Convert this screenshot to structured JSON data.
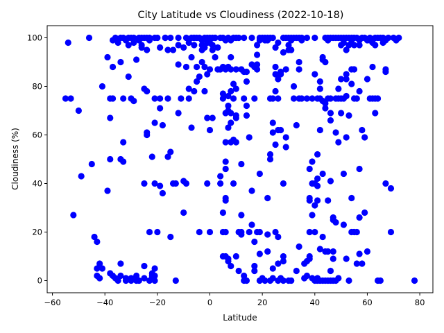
{
  "chart_data": {
    "type": "scatter",
    "title": "City Latitude vs Cloudiness (2022-10-18)",
    "xlabel": "Latitude",
    "ylabel": "Cloudiness (%)",
    "xlim": [
      -62,
      85
    ],
    "ylim": [
      -5,
      105
    ],
    "xticks": [
      -60,
      -40,
      -20,
      0,
      20,
      40,
      60,
      80
    ],
    "yticks": [
      0,
      20,
      40,
      60,
      80,
      100
    ],
    "grid": false,
    "marker_color": "#0000ff",
    "points": [
      [
        -55,
        75
      ],
      [
        -54,
        98
      ],
      [
        -53,
        75
      ],
      [
        -52,
        27
      ],
      [
        -50,
        70
      ],
      [
        -49,
        43
      ],
      [
        -46,
        100
      ],
      [
        -45,
        48
      ],
      [
        -44,
        18
      ],
      [
        -43,
        2
      ],
      [
        -43,
        5
      ],
      [
        -43,
        16
      ],
      [
        -42,
        7
      ],
      [
        -42,
        1
      ],
      [
        -41,
        5
      ],
      [
        -41,
        80
      ],
      [
        -39,
        92
      ],
      [
        -39,
        37
      ],
      [
        -38,
        67
      ],
      [
        -38,
        3
      ],
      [
        -38,
        50
      ],
      [
        -38,
        75
      ],
      [
        -37,
        99
      ],
      [
        -37,
        88
      ],
      [
        -37,
        75
      ],
      [
        -37,
        2
      ],
      [
        -36,
        100
      ],
      [
        -36,
        1
      ],
      [
        -35,
        98
      ],
      [
        -35,
        0
      ],
      [
        -34,
        100
      ],
      [
        -34,
        2
      ],
      [
        -34,
        7
      ],
      [
        -34,
        90
      ],
      [
        -34,
        50
      ],
      [
        -33,
        49
      ],
      [
        -33,
        100
      ],
      [
        -33,
        75
      ],
      [
        -33,
        57
      ],
      [
        -32,
        0
      ],
      [
        -32,
        99
      ],
      [
        -32,
        1
      ],
      [
        -31,
        100
      ],
      [
        -31,
        84
      ],
      [
        -31,
        97
      ],
      [
        -30,
        100
      ],
      [
        -30,
        0
      ],
      [
        -30,
        1
      ],
      [
        -30,
        75
      ],
      [
        -29,
        100
      ],
      [
        -29,
        98
      ],
      [
        -29,
        74
      ],
      [
        -28,
        91
      ],
      [
        -28,
        0
      ],
      [
        -28,
        2
      ],
      [
        -27,
        100
      ],
      [
        -27,
        99
      ],
      [
        -27,
        0
      ],
      [
        -26,
        100
      ],
      [
        -26,
        97
      ],
      [
        -26,
        96
      ],
      [
        -25,
        1
      ],
      [
        -25,
        100
      ],
      [
        -25,
        79
      ],
      [
        -25,
        40
      ],
      [
        -25,
        6
      ],
      [
        -24,
        100
      ],
      [
        -24,
        61
      ],
      [
        -24,
        78
      ],
      [
        -24,
        60
      ],
      [
        -24,
        95
      ],
      [
        -23,
        99
      ],
      [
        -23,
        100
      ],
      [
        -23,
        0
      ],
      [
        -23,
        20
      ],
      [
        -22,
        3
      ],
      [
        -22,
        2
      ],
      [
        -22,
        51
      ],
      [
        -22,
        1
      ],
      [
        -21,
        100
      ],
      [
        -21,
        75
      ],
      [
        -21,
        65
      ],
      [
        -21,
        40
      ],
      [
        -21,
        5
      ],
      [
        -21,
        0
      ],
      [
        -21,
        2
      ],
      [
        -20,
        20
      ],
      [
        -20,
        100
      ],
      [
        -19,
        96
      ],
      [
        -19,
        39
      ],
      [
        -19,
        71
      ],
      [
        -19,
        75
      ],
      [
        -18,
        64
      ],
      [
        -18,
        36
      ],
      [
        -17,
        100
      ],
      [
        -17,
        100
      ],
      [
        -16,
        75
      ],
      [
        -16,
        95
      ],
      [
        -16,
        51
      ],
      [
        -15,
        53
      ],
      [
        -15,
        18
      ],
      [
        -15,
        100
      ],
      [
        -14,
        40
      ],
      [
        -14,
        95
      ],
      [
        -13,
        0
      ],
      [
        -13,
        40
      ],
      [
        -12,
        100
      ],
      [
        -12,
        97
      ],
      [
        -12,
        89
      ],
      [
        -12,
        69
      ],
      [
        -11,
        75
      ],
      [
        -10,
        41
      ],
      [
        -10,
        28
      ],
      [
        -10,
        96
      ],
      [
        -9,
        100
      ],
      [
        -9,
        40
      ],
      [
        -9,
        88
      ],
      [
        -8,
        79
      ],
      [
        -8,
        98
      ],
      [
        -8,
        75
      ],
      [
        -7,
        100
      ],
      [
        -7,
        92
      ],
      [
        -7,
        63
      ],
      [
        -6,
        78
      ],
      [
        -6,
        100
      ],
      [
        -6,
        97
      ],
      [
        -6,
        100
      ],
      [
        -5,
        100
      ],
      [
        -5,
        82
      ],
      [
        -5,
        88
      ],
      [
        -4,
        100
      ],
      [
        -4,
        20
      ],
      [
        -4,
        84
      ],
      [
        -3,
        99
      ],
      [
        -3,
        90
      ],
      [
        -3,
        97
      ],
      [
        -3,
        95
      ],
      [
        -2,
        100
      ],
      [
        -2,
        96
      ],
      [
        -2,
        78
      ],
      [
        -2,
        88
      ],
      [
        -1,
        85
      ],
      [
        -1,
        40
      ],
      [
        -1,
        98
      ],
      [
        -1,
        100
      ],
      [
        -1,
        67
      ],
      [
        0,
        100
      ],
      [
        0,
        62
      ],
      [
        0,
        20
      ],
      [
        0,
        87
      ],
      [
        0,
        98
      ],
      [
        1,
        67
      ],
      [
        1,
        95
      ],
      [
        1,
        100
      ],
      [
        1,
        97
      ],
      [
        2,
        100
      ],
      [
        2,
        92
      ],
      [
        2,
        100
      ],
      [
        3,
        87
      ],
      [
        3,
        96
      ],
      [
        4,
        100
      ],
      [
        4,
        87
      ],
      [
        4,
        43
      ],
      [
        4,
        40
      ],
      [
        5,
        77
      ],
      [
        5,
        88
      ],
      [
        5,
        75
      ],
      [
        5,
        10
      ],
      [
        5,
        20
      ],
      [
        5,
        28
      ],
      [
        5,
        100
      ],
      [
        6,
        99
      ],
      [
        6,
        87
      ],
      [
        6,
        46
      ],
      [
        6,
        33
      ],
      [
        6,
        34
      ],
      [
        6,
        49
      ],
      [
        6,
        20
      ],
      [
        6,
        69
      ],
      [
        6,
        57
      ],
      [
        6,
        10
      ],
      [
        7,
        88
      ],
      [
        7,
        63
      ],
      [
        7,
        70
      ],
      [
        7,
        72
      ],
      [
        7,
        76
      ],
      [
        7,
        100
      ],
      [
        7,
        8
      ],
      [
        7,
        9
      ],
      [
        8,
        99
      ],
      [
        8,
        92
      ],
      [
        8,
        57
      ],
      [
        8,
        65
      ],
      [
        8,
        69
      ],
      [
        8,
        87
      ],
      [
        8,
        6
      ],
      [
        8,
        78
      ],
      [
        9,
        100
      ],
      [
        9,
        81
      ],
      [
        9,
        75
      ],
      [
        9,
        40
      ],
      [
        9,
        58
      ],
      [
        10,
        57
      ],
      [
        10,
        87
      ],
      [
        10,
        68
      ],
      [
        10,
        67
      ],
      [
        10,
        100
      ],
      [
        10,
        79
      ],
      [
        10,
        10
      ],
      [
        11,
        4
      ],
      [
        11,
        100
      ],
      [
        11,
        20
      ],
      [
        12,
        87
      ],
      [
        12,
        19
      ],
      [
        12,
        48
      ],
      [
        12,
        27
      ],
      [
        12,
        20
      ],
      [
        13,
        2
      ],
      [
        13,
        86
      ],
      [
        13,
        75
      ],
      [
        13,
        100
      ],
      [
        13,
        0
      ],
      [
        14,
        86
      ],
      [
        14,
        72
      ],
      [
        14,
        82
      ],
      [
        14,
        68
      ],
      [
        14,
        0
      ],
      [
        15,
        59
      ],
      [
        15,
        20
      ],
      [
        16,
        89
      ],
      [
        16,
        37
      ],
      [
        16,
        23
      ],
      [
        16,
        100
      ],
      [
        17,
        88
      ],
      [
        17,
        75
      ],
      [
        17,
        6
      ],
      [
        17,
        4
      ],
      [
        17,
        16
      ],
      [
        18,
        87
      ],
      [
        18,
        93
      ],
      [
        18,
        97
      ],
      [
        18,
        89
      ],
      [
        18,
        20
      ],
      [
        19,
        99
      ],
      [
        19,
        44
      ],
      [
        19,
        20
      ],
      [
        19,
        100
      ],
      [
        19,
        11
      ],
      [
        19,
        0
      ],
      [
        20,
        100
      ],
      [
        20,
        1
      ],
      [
        21,
        100
      ],
      [
        21,
        0
      ],
      [
        21,
        99
      ],
      [
        22,
        99
      ],
      [
        22,
        34
      ],
      [
        22,
        12
      ],
      [
        22,
        19
      ],
      [
        22,
        100
      ],
      [
        23,
        75
      ],
      [
        23,
        100
      ],
      [
        23,
        50
      ],
      [
        23,
        52
      ],
      [
        23,
        0
      ],
      [
        24,
        100
      ],
      [
        24,
        75
      ],
      [
        24,
        65
      ],
      [
        24,
        61
      ],
      [
        24,
        5
      ],
      [
        24,
        1
      ],
      [
        25,
        85
      ],
      [
        25,
        78
      ],
      [
        25,
        96
      ],
      [
        25,
        20
      ],
      [
        25,
        56
      ],
      [
        25,
        88
      ],
      [
        26,
        83
      ],
      [
        26,
        75
      ],
      [
        26,
        62
      ],
      [
        26,
        98
      ],
      [
        26,
        0
      ],
      [
        26,
        7
      ],
      [
        26,
        18
      ],
      [
        27,
        62
      ],
      [
        27,
        85
      ],
      [
        27,
        86
      ],
      [
        27,
        1
      ],
      [
        28,
        94
      ],
      [
        28,
        100
      ],
      [
        28,
        40
      ],
      [
        28,
        10
      ],
      [
        28,
        8
      ],
      [
        28,
        0
      ],
      [
        29,
        87
      ],
      [
        29,
        100
      ],
      [
        29,
        55
      ],
      [
        29,
        59
      ],
      [
        30,
        97
      ],
      [
        30,
        100
      ],
      [
        30,
        95
      ],
      [
        30,
        0
      ],
      [
        31,
        99
      ],
      [
        31,
        95
      ],
      [
        31,
        100
      ],
      [
        31,
        0
      ],
      [
        32,
        75
      ],
      [
        32,
        80
      ],
      [
        32,
        100
      ],
      [
        33,
        100
      ],
      [
        33,
        4
      ],
      [
        33,
        64
      ],
      [
        34,
        100
      ],
      [
        34,
        87
      ],
      [
        34,
        90
      ],
      [
        34,
        75
      ],
      [
        34,
        14
      ],
      [
        35,
        100
      ],
      [
        35,
        99
      ],
      [
        35,
        75
      ],
      [
        36,
        1
      ],
      [
        36,
        7
      ],
      [
        37,
        100
      ],
      [
        37,
        75
      ],
      [
        37,
        2
      ],
      [
        37,
        8
      ],
      [
        38,
        46
      ],
      [
        38,
        33
      ],
      [
        38,
        20
      ],
      [
        38,
        34
      ],
      [
        38,
        9
      ],
      [
        38,
        10
      ],
      [
        39,
        40
      ],
      [
        39,
        27
      ],
      [
        39,
        49
      ],
      [
        39,
        1
      ],
      [
        39,
        75
      ],
      [
        40,
        31
      ],
      [
        40,
        0
      ],
      [
        40,
        85
      ],
      [
        40,
        100
      ],
      [
        40,
        40
      ],
      [
        40,
        20
      ],
      [
        41,
        42
      ],
      [
        41,
        39
      ],
      [
        41,
        52
      ],
      [
        41,
        75
      ],
      [
        41,
        33
      ],
      [
        41,
        1
      ],
      [
        41,
        0
      ],
      [
        42,
        75
      ],
      [
        42,
        79
      ],
      [
        42,
        82
      ],
      [
        42,
        62
      ],
      [
        42,
        13
      ],
      [
        42,
        0
      ],
      [
        43,
        92
      ],
      [
        43,
        91
      ],
      [
        43,
        74
      ],
      [
        43,
        44
      ],
      [
        43,
        18
      ],
      [
        43,
        0
      ],
      [
        44,
        100
      ],
      [
        44,
        90
      ],
      [
        44,
        73
      ],
      [
        44,
        71
      ],
      [
        44,
        12
      ],
      [
        44,
        0
      ],
      [
        45,
        100
      ],
      [
        45,
        99
      ],
      [
        45,
        75
      ],
      [
        45,
        33
      ],
      [
        45,
        12
      ],
      [
        45,
        0
      ],
      [
        46,
        100
      ],
      [
        46,
        75
      ],
      [
        46,
        69
      ],
      [
        46,
        66
      ],
      [
        46,
        41
      ],
      [
        46,
        4
      ],
      [
        46,
        0
      ],
      [
        47,
        100
      ],
      [
        47,
        9
      ],
      [
        47,
        25
      ],
      [
        47,
        26
      ],
      [
        47,
        12
      ],
      [
        47,
        0
      ],
      [
        48,
        75
      ],
      [
        48,
        61
      ],
      [
        48,
        24
      ],
      [
        48,
        100
      ],
      [
        48,
        0
      ],
      [
        49,
        100
      ],
      [
        49,
        79
      ],
      [
        49,
        75
      ],
      [
        49,
        57
      ],
      [
        49,
        1
      ],
      [
        50,
        100
      ],
      [
        50,
        97
      ],
      [
        50,
        83
      ],
      [
        50,
        69
      ],
      [
        50,
        75
      ],
      [
        51,
        100
      ],
      [
        51,
        98
      ],
      [
        51,
        44
      ],
      [
        51,
        23
      ],
      [
        51,
        75
      ],
      [
        52,
        100
      ],
      [
        52,
        95
      ],
      [
        52,
        85
      ],
      [
        52,
        83
      ],
      [
        52,
        76
      ],
      [
        52,
        59
      ],
      [
        52,
        9
      ],
      [
        53,
        100
      ],
      [
        53,
        97
      ],
      [
        53,
        0
      ],
      [
        53,
        68
      ],
      [
        54,
        100
      ],
      [
        54,
        99
      ],
      [
        54,
        87
      ],
      [
        54,
        81
      ],
      [
        54,
        34
      ],
      [
        54,
        20
      ],
      [
        55,
        100
      ],
      [
        55,
        97
      ],
      [
        55,
        87
      ],
      [
        55,
        20
      ],
      [
        55,
        75
      ],
      [
        56,
        100
      ],
      [
        56,
        75
      ],
      [
        56,
        7
      ],
      [
        56,
        20
      ],
      [
        57,
        99
      ],
      [
        57,
        97
      ],
      [
        57,
        78
      ],
      [
        57,
        46
      ],
      [
        57,
        26
      ],
      [
        57,
        11
      ],
      [
        58,
        100
      ],
      [
        58,
        62
      ],
      [
        58,
        7
      ],
      [
        59,
        100
      ],
      [
        59,
        28
      ],
      [
        59,
        59
      ],
      [
        60,
        99
      ],
      [
        60,
        83
      ],
      [
        60,
        12
      ],
      [
        61,
        100
      ],
      [
        61,
        75
      ],
      [
        61,
        99
      ],
      [
        62,
        98
      ],
      [
        62,
        88
      ],
      [
        62,
        75
      ],
      [
        63,
        100
      ],
      [
        63,
        69
      ],
      [
        63,
        97
      ],
      [
        63,
        75
      ],
      [
        64,
        100
      ],
      [
        64,
        75
      ],
      [
        64,
        0
      ],
      [
        65,
        100
      ],
      [
        65,
        0
      ],
      [
        66,
        100
      ],
      [
        66,
        98
      ],
      [
        67,
        99
      ],
      [
        67,
        87
      ],
      [
        67,
        86
      ],
      [
        67,
        40
      ],
      [
        68,
        100
      ],
      [
        69,
        38
      ],
      [
        69,
        20
      ],
      [
        70,
        100
      ],
      [
        71,
        99
      ],
      [
        72,
        100
      ],
      [
        78,
        0
      ]
    ]
  }
}
